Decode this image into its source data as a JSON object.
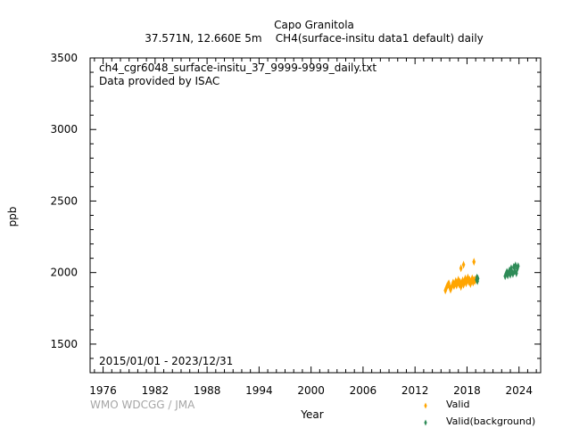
{
  "header": {
    "station": "Capo Granitola",
    "subtitle": "37.571N, 12.660E 5m    CH4(surface-insitu data1 default) daily"
  },
  "plot_text": {
    "filename": "ch4_cgr6048_surface-insitu_37_9999-9999_daily.txt",
    "provider": "Data provided by ISAC",
    "date_range": "2015/01/01 - 2023/12/31"
  },
  "watermark": "WMO WDCGG / JMA",
  "chart_data": {
    "type": "scatter",
    "xlabel": "Year",
    "ylabel": "ppb",
    "xlim": [
      1974.5,
      2026.5
    ],
    "ylim": [
      1300,
      3500
    ],
    "xticks": [
      1976,
      1982,
      1988,
      1994,
      2000,
      2006,
      2012,
      2018,
      2024
    ],
    "yticks": [
      1500,
      2000,
      2500,
      3000,
      3500
    ],
    "grid": false,
    "legend": "bottom-right",
    "series": [
      {
        "name": "Valid",
        "color": "#ffa500",
        "marker": "diamond",
        "points": [
          [
            2015.5,
            1875
          ],
          [
            2015.6,
            1890
          ],
          [
            2015.7,
            1905
          ],
          [
            2015.8,
            1915
          ],
          [
            2015.9,
            1925
          ],
          [
            2016.0,
            1898
          ],
          [
            2016.1,
            1880
          ],
          [
            2016.2,
            1895
          ],
          [
            2016.3,
            1912
          ],
          [
            2016.4,
            1930
          ],
          [
            2016.5,
            1905
          ],
          [
            2016.6,
            1920
          ],
          [
            2016.7,
            1940
          ],
          [
            2016.8,
            1910
          ],
          [
            2016.9,
            1928
          ],
          [
            2017.0,
            1950
          ],
          [
            2017.1,
            1918
          ],
          [
            2017.2,
            1935
          ],
          [
            2017.3,
            1900
          ],
          [
            2017.4,
            1925
          ],
          [
            2017.5,
            1945
          ],
          [
            2017.6,
            1915
          ],
          [
            2017.7,
            1938
          ],
          [
            2017.8,
            1958
          ],
          [
            2017.9,
            1925
          ],
          [
            2018.0,
            1945
          ],
          [
            2018.1,
            1965
          ],
          [
            2018.2,
            1935
          ],
          [
            2018.3,
            1950
          ],
          [
            2018.4,
            1920
          ],
          [
            2018.5,
            1942
          ],
          [
            2018.6,
            1960
          ],
          [
            2018.7,
            1930
          ],
          [
            2018.8,
            1950
          ],
          [
            2018.9,
            1940
          ],
          [
            2019.0,
            1955
          ],
          [
            2017.3,
            2030
          ],
          [
            2017.6,
            2055
          ],
          [
            2018.8,
            2075
          ]
        ]
      },
      {
        "name": "Valid(background)",
        "color": "#2e8b57",
        "marker": "diamond",
        "points": [
          [
            2019.1,
            1950
          ],
          [
            2019.15,
            1965
          ],
          [
            2019.2,
            1940
          ],
          [
            2019.25,
            1958
          ],
          [
            2022.4,
            1975
          ],
          [
            2022.5,
            1990
          ],
          [
            2022.6,
            2005
          ],
          [
            2022.7,
            1980
          ],
          [
            2022.8,
            2000
          ],
          [
            2022.9,
            2015
          ],
          [
            2023.0,
            1985
          ],
          [
            2023.1,
            2030
          ],
          [
            2023.2,
            2005
          ],
          [
            2023.3,
            1990
          ],
          [
            2023.4,
            2040
          ],
          [
            2023.5,
            2010
          ],
          [
            2023.6,
            2050
          ],
          [
            2023.7,
            1995
          ],
          [
            2023.8,
            2025
          ],
          [
            2023.9,
            2045
          ]
        ]
      }
    ]
  }
}
